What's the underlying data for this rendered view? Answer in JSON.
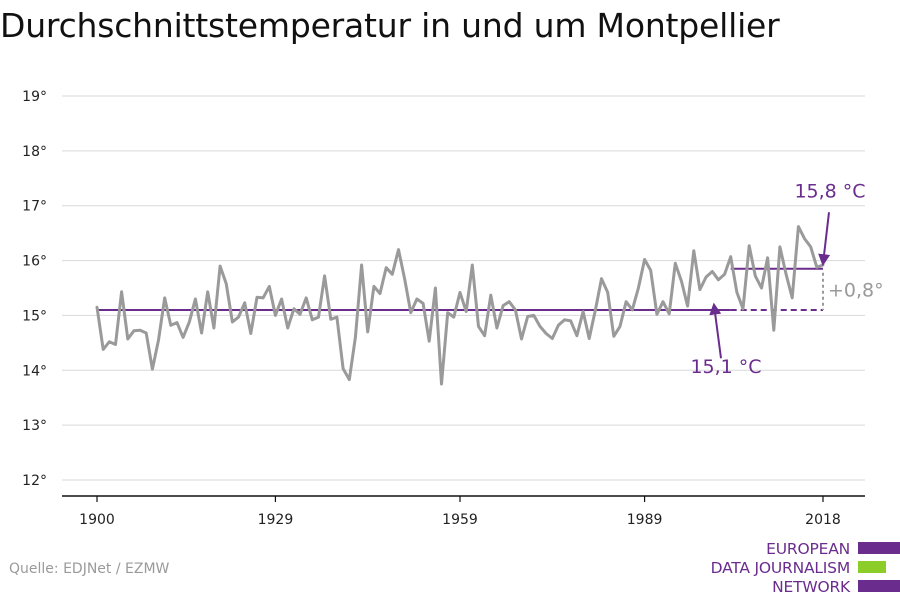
{
  "title": "Durchschnittstemperatur in und um Montpellier",
  "source": "Quelle: EDJNet / EZMW",
  "logo": {
    "lines": [
      "EUROPEAN",
      "DATA JOURNALISM",
      "NETWORK"
    ],
    "colors": {
      "purple": "#6a2d8e",
      "green": "#8ccd2a"
    }
  },
  "colors": {
    "series": "#9a9a9a",
    "reference": "#6a2d8e",
    "grid": "#d9d9d9",
    "axis": "#111111",
    "difference": "#9a9a9a"
  },
  "chart_data": {
    "type": "line",
    "title": "Durchschnittstemperatur in und um Montpellier",
    "xlabel": "",
    "ylabel": "",
    "xlim": [
      1900,
      2018
    ],
    "ylim": [
      11.8,
      19.4
    ],
    "grid": true,
    "x_ticks": [
      1900,
      1929,
      1959,
      1989,
      2018
    ],
    "x_tick_labels": [
      "1900",
      "1929",
      "1959",
      "1989",
      "2018"
    ],
    "y_ticks": [
      12,
      13,
      14,
      15,
      16,
      17,
      18,
      19
    ],
    "y_tick_labels": [
      "12°",
      "13°",
      "14°",
      "15°",
      "16°",
      "17°",
      "18°",
      "19°"
    ],
    "series": [
      {
        "x_start": 1900,
        "x_step": 1,
        "values": [
          15.15,
          14.38,
          14.52,
          14.47,
          15.43,
          14.57,
          14.72,
          14.73,
          14.68,
          14.02,
          14.55,
          15.32,
          14.82,
          14.87,
          14.6,
          14.88,
          15.3,
          14.68,
          15.43,
          14.77,
          15.9,
          15.58,
          14.88,
          14.97,
          15.23,
          14.67,
          15.33,
          15.32,
          15.53,
          15.0,
          15.3,
          14.77,
          15.12,
          15.02,
          15.32,
          14.92,
          14.97,
          15.72,
          14.93,
          14.97,
          14.03,
          13.83,
          14.6,
          15.92,
          14.7,
          15.53,
          15.4,
          15.87,
          15.75,
          16.2,
          15.67,
          15.05,
          15.3,
          15.22,
          14.53,
          15.5,
          13.75,
          15.05,
          14.97,
          15.42,
          15.07,
          15.92,
          14.8,
          14.63,
          15.37,
          14.77,
          15.18,
          15.25,
          15.1,
          14.57,
          14.98,
          15.0,
          14.8,
          14.67,
          14.58,
          14.82,
          14.92,
          14.9,
          14.63,
          15.07,
          14.58,
          15.1,
          15.67,
          15.42,
          14.62,
          14.8,
          15.25,
          15.1,
          15.5,
          16.02,
          15.82,
          15.02,
          15.25,
          15.03,
          15.95,
          15.62,
          15.17,
          16.18,
          15.47,
          15.7,
          15.8,
          15.65,
          15.75,
          16.07,
          15.42,
          15.12,
          16.27,
          15.72,
          15.5,
          16.05,
          14.73,
          16.25,
          15.75,
          15.32,
          16.62,
          16.4,
          16.25,
          15.88,
          15.92
        ]
      }
    ],
    "reference_lines": [
      {
        "label": "15,1 °C",
        "value": 15.1,
        "x_from": 1900,
        "x_to": 2018,
        "solid_until": 2003
      },
      {
        "label": "15,8 °C",
        "value": 15.85,
        "x_from": 2003,
        "x_to": 2018
      }
    ],
    "difference_label": "+0,8°"
  }
}
